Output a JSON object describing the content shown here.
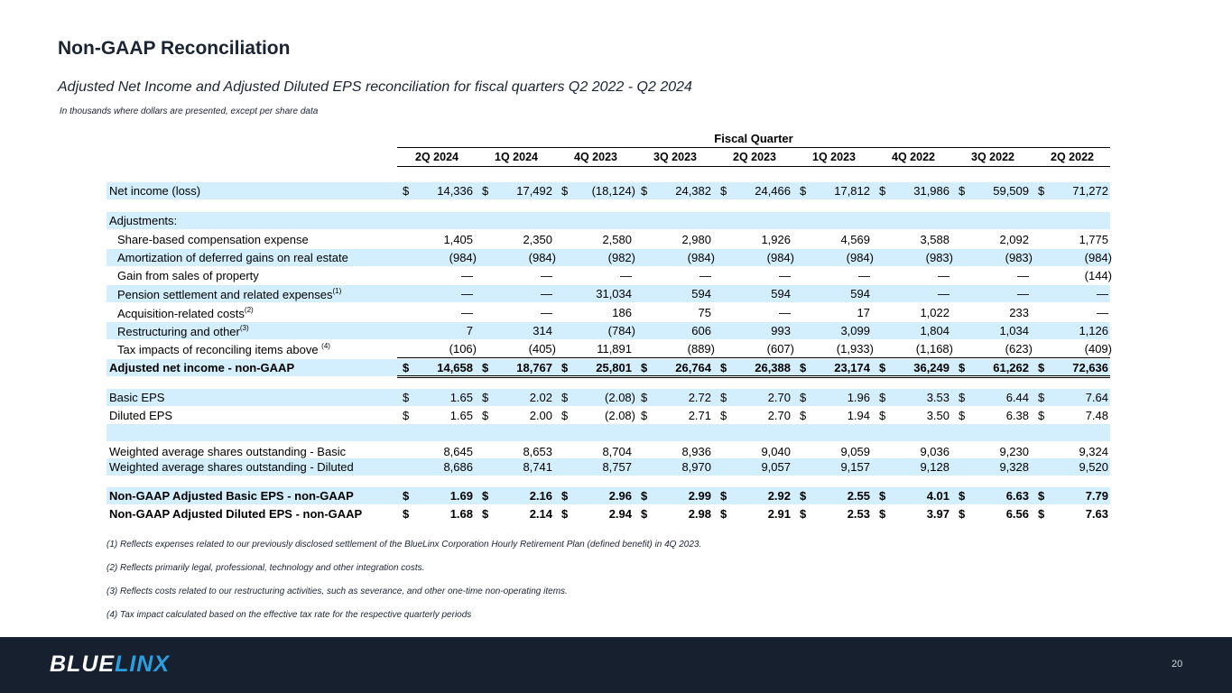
{
  "title": "Non-GAAP Reconciliation",
  "subtitle": "Adjusted Net Income and Adjusted Diluted EPS reconciliation for fiscal quarters Q2 2022 - Q2 2024",
  "units_note": "In thousands where dollars are presented, except per share data",
  "table": {
    "group_header": "Fiscal Quarter",
    "columns": [
      "2Q 2024",
      "1Q 2024",
      "4Q 2023",
      "3Q 2023",
      "2Q 2023",
      "1Q 2023",
      "4Q 2022",
      "3Q 2022",
      "2Q 2022"
    ],
    "rows": [
      {
        "label": "Net income (loss)",
        "dollar": true,
        "shade": true,
        "values": [
          "14,336",
          "17,492",
          "(18,124)",
          "24,382",
          "24,466",
          "17,812",
          "31,986",
          "59,509",
          "71,272"
        ]
      },
      {
        "label": "Adjustments:",
        "shade": true,
        "values": []
      },
      {
        "label": "Share-based compensation expense",
        "indent": true,
        "values": [
          "1,405",
          "2,350",
          "2,580",
          "2,980",
          "1,926",
          "4,569",
          "3,588",
          "2,092",
          "1,775"
        ]
      },
      {
        "label": "Amortization of deferred gains on real estate",
        "indent": true,
        "shade": true,
        "values": [
          "(984)",
          "(984)",
          "(982)",
          "(984)",
          "(984)",
          "(984)",
          "(983)",
          "(983)",
          "(984)"
        ]
      },
      {
        "label": "Gain from sales of property",
        "indent": true,
        "values": [
          "—",
          "—",
          "—",
          "—",
          "—",
          "—",
          "—",
          "—",
          "(144)"
        ]
      },
      {
        "label": "Pension settlement and related expenses",
        "sup": "(1)",
        "indent": true,
        "shade": true,
        "values": [
          "—",
          "—",
          "31,034",
          "594",
          "594",
          "594",
          "—",
          "—",
          "—"
        ]
      },
      {
        "label": "Acquisition-related costs",
        "sup": "(2)",
        "indent": true,
        "values": [
          "—",
          "—",
          "186",
          "75",
          "—",
          "17",
          "1,022",
          "233",
          "—"
        ]
      },
      {
        "label": "Restructuring and other",
        "sup": "(3)",
        "indent": true,
        "shade": true,
        "values": [
          "7",
          "314",
          "(784)",
          "606",
          "993",
          "3,099",
          "1,804",
          "1,034",
          "1,126"
        ]
      },
      {
        "label": "Tax impacts of reconciling items above ",
        "sup": "(4)",
        "indent": true,
        "values": [
          "(106)",
          "(405)",
          "11,891",
          "(889)",
          "(607)",
          "(1,933)",
          "(1,168)",
          "(623)",
          "(409)"
        ]
      },
      {
        "label": "Adjusted net income - non-GAAP",
        "dollar": true,
        "bold": true,
        "shade": true,
        "values": [
          "14,658",
          "18,767",
          "25,801",
          "26,764",
          "26,388",
          "23,174",
          "36,249",
          "61,262",
          "72,636"
        ]
      },
      {
        "label": "Basic EPS",
        "dollar": true,
        "shade": true,
        "values": [
          "1.65",
          "2.02",
          "(2.08)",
          "2.72",
          "2.70",
          "1.96",
          "3.53",
          "6.44",
          "7.64"
        ]
      },
      {
        "label": "Diluted EPS",
        "dollar": true,
        "values": [
          "1.65",
          "2.00",
          "(2.08)",
          "2.71",
          "2.70",
          "1.94",
          "3.50",
          "6.38",
          "7.48"
        ]
      },
      {
        "label": "",
        "shade": true,
        "values": []
      },
      {
        "label": "Weighted average shares outstanding - Basic",
        "values": [
          "8,645",
          "8,653",
          "8,704",
          "8,936",
          "9,040",
          "9,059",
          "9,036",
          "9,230",
          "9,324"
        ]
      },
      {
        "label": "Weighted average shares outstanding - Diluted",
        "shade": true,
        "values": [
          "8,686",
          "8,741",
          "8,757",
          "8,970",
          "9,057",
          "9,157",
          "9,128",
          "9,328",
          "9,520"
        ]
      },
      {
        "label": "Non-GAAP Adjusted Basic EPS - non-GAAP",
        "dollar": true,
        "bold": true,
        "shade": true,
        "values": [
          "1.69",
          "2.16",
          "2.96",
          "2.99",
          "2.92",
          "2.55",
          "4.01",
          "6.63",
          "7.79"
        ]
      },
      {
        "label": "Non-GAAP Adjusted Diluted EPS - non-GAAP",
        "dollar": true,
        "bold": true,
        "values": [
          "1.68",
          "2.14",
          "2.94",
          "2.98",
          "2.91",
          "2.53",
          "3.97",
          "6.56",
          "7.63"
        ]
      }
    ]
  },
  "footnotes": [
    "(1) Reflects expenses related to our previously disclosed settlement of the BlueLinx Corporation Hourly Retirement Plan (defined benefit) in 4Q 2023.",
    "(2) Reflects primarily legal, professional, technology and other integration costs.",
    "(3) Reflects costs related to our restructuring activities, such as severance, and other one-time non-operating items.",
    "(4) Tax impact calculated based on the effective tax rate for the respective quarterly periods"
  ],
  "footer": {
    "logo_part1": "BLUE",
    "logo_part2": "LINX",
    "page_number": "20"
  },
  "colors": {
    "row_shade": "#d3eefc",
    "footer_bg": "#16202f",
    "brand_blue": "#2a9fe0"
  }
}
